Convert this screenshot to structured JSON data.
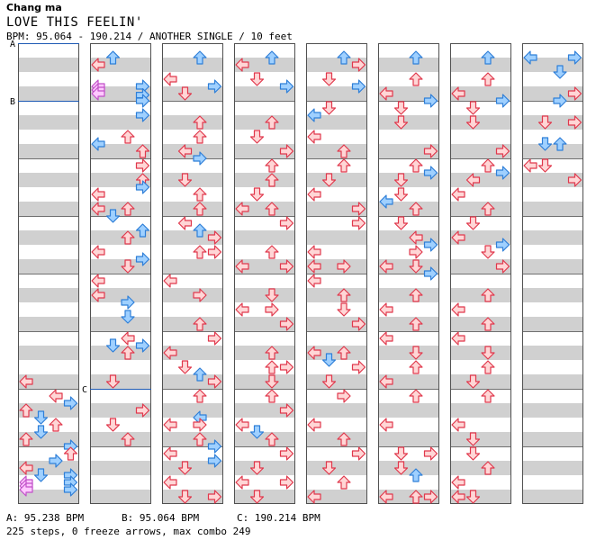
{
  "song": {
    "artist": "Chang ma",
    "title": "LOVE THIS FEELIN'",
    "info": "BPM: 95.064 - 190.214 / ANOTHER SINGLE / 10 feet"
  },
  "footer": {
    "bpm_a": "A: 95.238 BPM",
    "bpm_b": "B: 95.064 BPM",
    "bpm_c": "C: 190.214 BPM",
    "stats": "225 steps, 0 freeze arrows, max combo 249"
  },
  "chart_data": {
    "type": "step_chart",
    "columns": 8,
    "measures_per_column": 8,
    "lanes": [
      "left",
      "down",
      "up",
      "right"
    ],
    "colors": {
      "quarter_fill": "#ffd6d6",
      "quarter_stroke": "#e0384c",
      "eighth_fill": "#9fd0ff",
      "eighth_stroke": "#2f7fd8",
      "sixteenth_fill": "#ffc8ff",
      "sixteenth_stroke": "#c050c8",
      "stripe": "#d0d0d0",
      "bpm_line": "#1e5ab4"
    },
    "bpm_markers": [
      {
        "label": "A",
        "col": 0,
        "beat": 0
      },
      {
        "label": "B",
        "col": 0,
        "beat": 4
      },
      {
        "label": "C",
        "col": 1,
        "beat": 24
      }
    ],
    "notes": [
      [
        [
          0,
          23,
          "l"
        ],
        [
          2,
          24,
          "l"
        ],
        [
          3,
          24.5,
          "r"
        ],
        [
          4,
          25,
          "u"
        ],
        [
          5,
          25.5,
          "d"
        ],
        [
          6,
          26,
          "u"
        ],
        [
          8,
          27,
          "u"
        ],
        [
          7,
          27.5,
          "r"
        ],
        [
          1,
          26.5,
          "d"
        ],
        [
          3,
          28,
          "u"
        ],
        [
          2,
          28.5,
          "r"
        ],
        [
          0,
          29,
          "l"
        ],
        [
          1,
          29.5,
          "d"
        ],
        [
          0,
          30,
          "p"
        ],
        [
          0,
          30.25,
          "p"
        ],
        [
          0,
          30.5,
          "p"
        ],
        [
          3,
          29.5,
          "r"
        ],
        [
          3,
          30,
          "b"
        ],
        [
          3,
          30.5,
          "r"
        ],
        [
          0,
          32,
          "l"
        ],
        [
          1,
          33,
          "d"
        ],
        [
          2,
          32.5,
          "r"
        ],
        [
          3,
          34,
          "u"
        ],
        [
          2,
          35,
          "d"
        ],
        [
          4,
          35,
          "d"
        ]
      ],
      [
        [
          1,
          0.5,
          "u"
        ],
        [
          0,
          1,
          "l"
        ],
        [
          0,
          2.5,
          "p"
        ],
        [
          0,
          2.75,
          "p"
        ],
        [
          0,
          3,
          "p"
        ],
        [
          3,
          2.5,
          "r"
        ],
        [
          3,
          3.1,
          "b"
        ],
        [
          3,
          3.5,
          "r"
        ],
        [
          3,
          4.5,
          "r"
        ],
        [
          2,
          6,
          "u"
        ],
        [
          0,
          6.5,
          "l"
        ],
        [
          3,
          7,
          "u"
        ],
        [
          3,
          8,
          "r"
        ],
        [
          3,
          9,
          "u"
        ],
        [
          3,
          9.5,
          "r"
        ],
        [
          0,
          10,
          "l"
        ],
        [
          0,
          11,
          "l"
        ],
        [
          1,
          11.5,
          "d"
        ],
        [
          2,
          11,
          "u"
        ],
        [
          3,
          12.5,
          "u"
        ],
        [
          2,
          13,
          "u"
        ],
        [
          0,
          14,
          "l"
        ],
        [
          3,
          14.5,
          "r"
        ],
        [
          2,
          15,
          "d"
        ],
        [
          0,
          16,
          "l"
        ],
        [
          0,
          17,
          "l"
        ],
        [
          2,
          17.5,
          "r"
        ],
        [
          2,
          18.5,
          "d"
        ],
        [
          2,
          20,
          "l"
        ],
        [
          1,
          20.5,
          "d"
        ],
        [
          3,
          20.5,
          "r"
        ],
        [
          2,
          21,
          "u"
        ],
        [
          1,
          23,
          "d"
        ],
        [
          3,
          25,
          "r"
        ],
        [
          1,
          26,
          "d"
        ],
        [
          2,
          27,
          "u"
        ]
      ],
      [
        [
          2,
          0.5,
          "u"
        ],
        [
          0,
          2,
          "l"
        ],
        [
          1,
          3,
          "d"
        ],
        [
          3,
          2.5,
          "r"
        ],
        [
          2,
          5,
          "u"
        ],
        [
          2,
          6,
          "u"
        ],
        [
          1,
          7,
          "l"
        ],
        [
          2,
          7.5,
          "r"
        ],
        [
          1,
          9,
          "d"
        ],
        [
          2,
          10,
          "u"
        ],
        [
          2,
          11,
          "u"
        ],
        [
          1,
          12,
          "l"
        ],
        [
          2,
          12.5,
          "u"
        ],
        [
          3,
          13,
          "r"
        ],
        [
          2,
          14,
          "u"
        ],
        [
          3,
          14,
          "r"
        ],
        [
          0,
          16,
          "l"
        ],
        [
          2,
          17,
          "r"
        ],
        [
          2,
          19,
          "u"
        ],
        [
          3,
          20,
          "r"
        ],
        [
          0,
          21,
          "l"
        ],
        [
          1,
          22,
          "d"
        ],
        [
          2,
          22.5,
          "u"
        ],
        [
          3,
          23,
          "r"
        ],
        [
          2,
          24,
          "u"
        ],
        [
          0,
          26,
          "l"
        ],
        [
          2,
          25.5,
          "l"
        ],
        [
          2,
          26,
          "r"
        ],
        [
          2,
          27,
          "u"
        ],
        [
          3,
          27.5,
          "r"
        ],
        [
          0,
          28,
          "l"
        ],
        [
          1,
          29,
          "d"
        ],
        [
          3,
          28.5,
          "r"
        ],
        [
          0,
          30,
          "l"
        ],
        [
          1,
          31,
          "d"
        ],
        [
          3,
          31,
          "r"
        ]
      ],
      [
        [
          2,
          0.5,
          "u"
        ],
        [
          0,
          1,
          "l"
        ],
        [
          1,
          2,
          "d"
        ],
        [
          3,
          2.5,
          "r"
        ],
        [
          2,
          5,
          "u"
        ],
        [
          1,
          6,
          "d"
        ],
        [
          3,
          7,
          "r"
        ],
        [
          2,
          8,
          "u"
        ],
        [
          2,
          9,
          "u"
        ],
        [
          1,
          10,
          "d"
        ],
        [
          0,
          11,
          "l"
        ],
        [
          2,
          11,
          "u"
        ],
        [
          3,
          12,
          "r"
        ],
        [
          2,
          14,
          "u"
        ],
        [
          0,
          15,
          "l"
        ],
        [
          3,
          15,
          "r"
        ],
        [
          2,
          17,
          "d"
        ],
        [
          0,
          18,
          "l"
        ],
        [
          2,
          18,
          "r"
        ],
        [
          3,
          19,
          "r"
        ],
        [
          2,
          21,
          "u"
        ],
        [
          2,
          22,
          "u"
        ],
        [
          3,
          22,
          "r"
        ],
        [
          2,
          23,
          "d"
        ],
        [
          2,
          24,
          "u"
        ],
        [
          3,
          25,
          "r"
        ],
        [
          0,
          26,
          "l"
        ],
        [
          1,
          26.5,
          "d"
        ],
        [
          2,
          27,
          "u"
        ],
        [
          3,
          28,
          "r"
        ],
        [
          1,
          29,
          "d"
        ],
        [
          0,
          30,
          "l"
        ],
        [
          3,
          30,
          "r"
        ],
        [
          1,
          31,
          "d"
        ]
      ],
      [
        [
          2,
          0.5,
          "u"
        ],
        [
          3,
          1,
          "r"
        ],
        [
          1,
          2,
          "d"
        ],
        [
          3,
          2.5,
          "r"
        ],
        [
          0,
          4.5,
          "l"
        ],
        [
          1,
          4,
          "d"
        ],
        [
          0,
          6,
          "l"
        ],
        [
          2,
          7,
          "u"
        ],
        [
          2,
          8,
          "u"
        ],
        [
          1,
          9,
          "d"
        ],
        [
          0,
          10,
          "l"
        ],
        [
          3,
          11,
          "r"
        ],
        [
          3,
          12,
          "r"
        ],
        [
          0,
          14,
          "l"
        ],
        [
          0,
          15,
          "l"
        ],
        [
          2,
          15,
          "r"
        ],
        [
          0,
          16,
          "l"
        ],
        [
          2,
          17,
          "u"
        ],
        [
          2,
          18,
          "d"
        ],
        [
          3,
          19,
          "r"
        ],
        [
          0,
          21,
          "l"
        ],
        [
          1,
          21.5,
          "d"
        ],
        [
          2,
          21,
          "u"
        ],
        [
          3,
          22,
          "r"
        ],
        [
          1,
          23,
          "d"
        ],
        [
          2,
          24,
          "r"
        ],
        [
          0,
          26,
          "l"
        ],
        [
          2,
          27,
          "u"
        ],
        [
          3,
          28,
          "r"
        ],
        [
          1,
          29,
          "d"
        ],
        [
          2,
          30,
          "u"
        ],
        [
          0,
          31,
          "l"
        ]
      ],
      [
        [
          2,
          0.5,
          "u"
        ],
        [
          2,
          2,
          "u"
        ],
        [
          0,
          3,
          "l"
        ],
        [
          3,
          3.5,
          "r"
        ],
        [
          1,
          4,
          "d"
        ],
        [
          1,
          5,
          "d"
        ],
        [
          3,
          7,
          "r"
        ],
        [
          2,
          8,
          "u"
        ],
        [
          3,
          8.5,
          "r"
        ],
        [
          1,
          9,
          "d"
        ],
        [
          1,
          10,
          "d"
        ],
        [
          0,
          10.5,
          "l"
        ],
        [
          2,
          11,
          "u"
        ],
        [
          1,
          12,
          "d"
        ],
        [
          2,
          13,
          "l"
        ],
        [
          3,
          13.5,
          "r"
        ],
        [
          2,
          14,
          "r"
        ],
        [
          0,
          15,
          "l"
        ],
        [
          2,
          15,
          "d"
        ],
        [
          3,
          15.5,
          "r"
        ],
        [
          2,
          17,
          "u"
        ],
        [
          0,
          18,
          "l"
        ],
        [
          2,
          19,
          "u"
        ],
        [
          0,
          20,
          "l"
        ],
        [
          2,
          21,
          "d"
        ],
        [
          2,
          22,
          "u"
        ],
        [
          0,
          23,
          "l"
        ],
        [
          2,
          24,
          "u"
        ],
        [
          0,
          26,
          "l"
        ],
        [
          1,
          28,
          "d"
        ],
        [
          3,
          28,
          "r"
        ],
        [
          1,
          29,
          "d"
        ],
        [
          2,
          29.5,
          "u"
        ],
        [
          0,
          31,
          "l"
        ],
        [
          2,
          31,
          "u"
        ],
        [
          3,
          31,
          "r"
        ]
      ],
      [
        [
          2,
          0.5,
          "u"
        ],
        [
          2,
          2,
          "u"
        ],
        [
          0,
          3,
          "l"
        ],
        [
          3,
          3.5,
          "r"
        ],
        [
          1,
          4,
          "d"
        ],
        [
          1,
          5,
          "d"
        ],
        [
          3,
          7,
          "r"
        ],
        [
          2,
          8,
          "u"
        ],
        [
          3,
          8.5,
          "r"
        ],
        [
          1,
          9,
          "l"
        ],
        [
          0,
          10,
          "l"
        ],
        [
          2,
          11,
          "u"
        ],
        [
          1,
          12,
          "d"
        ],
        [
          0,
          13,
          "l"
        ],
        [
          3,
          13.5,
          "r"
        ],
        [
          2,
          14,
          "d"
        ],
        [
          3,
          15,
          "r"
        ],
        [
          2,
          17,
          "u"
        ],
        [
          0,
          18,
          "l"
        ],
        [
          2,
          19,
          "u"
        ],
        [
          0,
          20,
          "l"
        ],
        [
          2,
          21,
          "d"
        ],
        [
          2,
          22,
          "u"
        ],
        [
          1,
          23,
          "d"
        ],
        [
          2,
          24,
          "u"
        ],
        [
          0,
          26,
          "l"
        ],
        [
          1,
          27,
          "d"
        ],
        [
          1,
          28,
          "d"
        ],
        [
          2,
          29,
          "u"
        ],
        [
          0,
          30,
          "l"
        ],
        [
          1,
          31,
          "d"
        ],
        [
          0,
          31,
          "l"
        ]
      ],
      [
        [
          0,
          0.5,
          "l"
        ],
        [
          3,
          0.5,
          "r"
        ],
        [
          2,
          1.5,
          "d"
        ],
        [
          3,
          3,
          "r"
        ],
        [
          2,
          3.5,
          "r"
        ],
        [
          1,
          5,
          "d"
        ],
        [
          3,
          5,
          "r"
        ],
        [
          1,
          6.5,
          "d"
        ],
        [
          2,
          6.5,
          "u"
        ],
        [
          0,
          8,
          "l"
        ],
        [
          1,
          8,
          "d"
        ],
        [
          3,
          9,
          "r"
        ]
      ]
    ]
  }
}
